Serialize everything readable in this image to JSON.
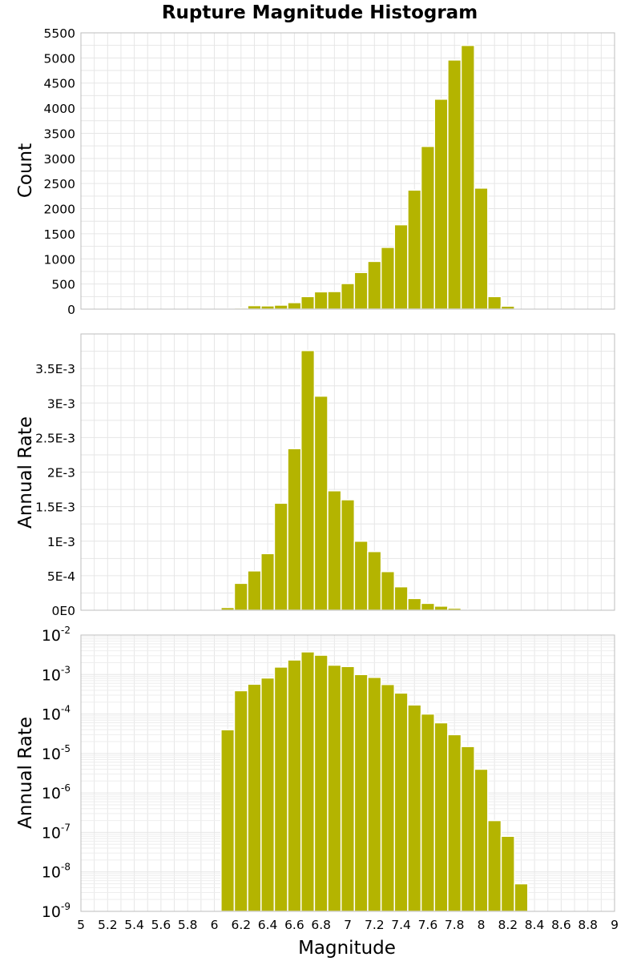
{
  "title": "Rupture Magnitude Histogram",
  "xlabel": "Magnitude",
  "x_tick_labels": [
    "5",
    "5.2",
    "5.4",
    "5.6",
    "5.8",
    "6",
    "6.2",
    "6.4",
    "6.6",
    "6.8",
    "7",
    "7.2",
    "7.4",
    "7.6",
    "7.8",
    "8",
    "8.2",
    "8.4",
    "8.6",
    "8.8",
    "9"
  ],
  "colors": {
    "bar": "#b4b400",
    "bar_edge": "#ffffff",
    "frame": "#bdbdbd",
    "grid": "#e6e6e6"
  },
  "chart_data": [
    {
      "type": "bar",
      "title": "Rupture Magnitude Histogram",
      "ylabel": "Count",
      "xlim": [
        5,
        9
      ],
      "ylim": [
        0,
        5500
      ],
      "bin_width": 0.1,
      "y_tick_labels": [
        "0",
        "500",
        "1000",
        "1500",
        "2000",
        "2500",
        "3000",
        "3500",
        "4000",
        "4500",
        "5000",
        "5500"
      ],
      "y_ticks": [
        0,
        500,
        1000,
        1500,
        2000,
        2500,
        3000,
        3500,
        4000,
        4500,
        5000,
        5500
      ],
      "grid": true,
      "series": [
        {
          "bin_centers": [
            6.1,
            6.2,
            6.3,
            6.4,
            6.5,
            6.6,
            6.7,
            6.8,
            6.9,
            7.0,
            7.1,
            7.2,
            7.3,
            7.4,
            7.5,
            7.6,
            7.7,
            7.8,
            7.9,
            8.0,
            8.1,
            8.2,
            8.3
          ],
          "values": [
            10,
            25,
            70,
            65,
            80,
            130,
            250,
            345,
            350,
            510,
            730,
            950,
            1230,
            1680,
            2370,
            3240,
            4180,
            4960,
            5250,
            2410,
            250,
            60,
            0
          ]
        }
      ]
    },
    {
      "type": "bar",
      "ylabel": "Annual Rate",
      "xlim": [
        5,
        9
      ],
      "ylim": [
        0,
        0.004
      ],
      "bin_width": 0.1,
      "y_tick_labels": [
        "0E0",
        "5E-4",
        "1E-3",
        "1.5E-3",
        "2E-3",
        "2.5E-3",
        "3E-3",
        "3.5E-3"
      ],
      "y_ticks": [
        0,
        0.0005,
        0.001,
        0.0015,
        0.002,
        0.0025,
        0.003,
        0.0035
      ],
      "grid": true,
      "series": [
        {
          "bin_centers": [
            6.1,
            6.2,
            6.3,
            6.4,
            6.5,
            6.6,
            6.7,
            6.8,
            6.9,
            7.0,
            7.1,
            7.2,
            7.3,
            7.4,
            7.5,
            7.6,
            7.7,
            7.8,
            7.9,
            8.0,
            8.1,
            8.2,
            8.3
          ],
          "values": [
            4e-05,
            0.00039,
            0.00057,
            0.00082,
            0.00155,
            0.00234,
            0.00376,
            0.0031,
            0.00173,
            0.0016,
            0.001,
            0.00085,
            0.00056,
            0.00034,
            0.00017,
            0.0001,
            6e-05,
            3e-05,
            1.5e-05,
            4e-06,
            2e-07,
            8e-08,
            5e-09
          ]
        }
      ]
    },
    {
      "type": "bar",
      "ylabel": "Annual Rate",
      "xlabel": "Magnitude",
      "xlim": [
        5,
        9
      ],
      "ylim": [
        1e-09,
        0.01
      ],
      "y_scale": "log",
      "bin_width": 0.1,
      "y_tick_exponents": [
        "-9",
        "-8",
        "-7",
        "-6",
        "-5",
        "-4",
        "-3",
        "-2"
      ],
      "y_tick_base": "10",
      "grid": true,
      "series": [
        {
          "bin_centers": [
            6.1,
            6.2,
            6.3,
            6.4,
            6.5,
            6.6,
            6.7,
            6.8,
            6.9,
            7.0,
            7.1,
            7.2,
            7.3,
            7.4,
            7.5,
            7.6,
            7.7,
            7.8,
            7.9,
            8.0,
            8.1,
            8.2,
            8.3
          ],
          "values": [
            4e-05,
            0.00039,
            0.00057,
            0.00082,
            0.00155,
            0.00234,
            0.00376,
            0.0031,
            0.00173,
            0.0016,
            0.001,
            0.00085,
            0.00056,
            0.00034,
            0.00017,
            0.0001,
            6e-05,
            3e-05,
            1.5e-05,
            4e-06,
            2e-07,
            8e-08,
            5e-09
          ]
        }
      ]
    }
  ]
}
